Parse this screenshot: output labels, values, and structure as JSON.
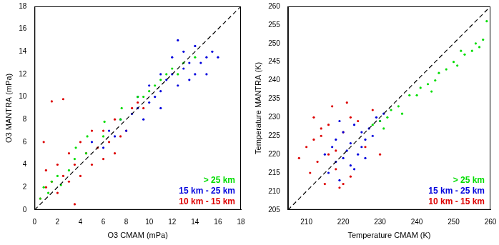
{
  "chart_data": [
    {
      "type": "scatter",
      "x_label": "O3 CMAM (mPa)",
      "y_label": "O3 MANTRA (mPa)",
      "xlim": [
        0,
        18
      ],
      "xticks": [
        0,
        2,
        4,
        6,
        8,
        10,
        12,
        14,
        16,
        18
      ],
      "ylim": [
        0,
        18
      ],
      "yticks": [
        0,
        2,
        4,
        6,
        8,
        10,
        12,
        14,
        16,
        18
      ],
      "grid": false,
      "legend": "lower right",
      "series": [
        {
          "type": "line",
          "line_style": "dashed",
          "color": "#000000",
          "x": [
            0,
            18
          ],
          "values": [
            0,
            18
          ]
        },
        {
          "name": "> 25 km",
          "color": "#00dd00",
          "marker": "point",
          "x": [
            0.5,
            0.8,
            1.2,
            1.5,
            2.0,
            2.3,
            3.0,
            3.5,
            3.6,
            4.5,
            4.6,
            6.0,
            6.1,
            7.5,
            7.6,
            9.0,
            9.5,
            10,
            10.5,
            11,
            11.5,
            12,
            12.5,
            13,
            14
          ],
          "values": [
            1.0,
            2.0,
            1.5,
            2.5,
            3.0,
            2.2,
            3.5,
            4.5,
            5.5,
            5.0,
            6.5,
            6.5,
            7.8,
            8.0,
            9.0,
            10,
            10,
            10.5,
            11,
            11.5,
            12,
            12.5,
            12,
            13,
            13.5
          ]
        },
        {
          "name": "15 km - 25 km",
          "color": "#0000dd",
          "marker": "point",
          "x": [
            5,
            6,
            6.5,
            7,
            7.5,
            8,
            8.5,
            9,
            9.5,
            10,
            10,
            10.5,
            11,
            11,
            11.5,
            12,
            12,
            12.5,
            13,
            13,
            13.5,
            14,
            14,
            14.5,
            15,
            15,
            15.5,
            16,
            9,
            11,
            12.5,
            13.5
          ],
          "values": [
            6,
            5.5,
            7,
            6.5,
            8,
            7,
            8.5,
            9,
            8,
            9.5,
            11,
            10,
            10.5,
            12,
            11.5,
            12,
            13.5,
            11,
            12.5,
            14,
            13,
            12,
            14.5,
            13,
            13.5,
            12,
            14,
            13.5,
            10,
            9,
            15,
            11.5
          ]
        },
        {
          "name": "10 km - 15 km",
          "color": "#dd0000",
          "marker": "point",
          "x": [
            0.5,
            1,
            1,
            1.5,
            2,
            2,
            2.5,
            3,
            3,
            3.5,
            4,
            4,
            4.5,
            5,
            5,
            5.5,
            6,
            6,
            6.5,
            7,
            7,
            7.5,
            8,
            8.5,
            9,
            1.5,
            2.5,
            3.5,
            9.5,
            0.8
          ],
          "values": [
            1,
            2,
            3.5,
            2.5,
            1.5,
            4,
            3,
            2.5,
            5,
            4,
            3,
            6,
            5,
            4,
            7,
            5.5,
            4.5,
            7,
            6,
            5,
            8,
            6.5,
            7,
            9,
            9.5,
            9.6,
            9.8,
            0.5,
            9,
            6
          ]
        }
      ]
    },
    {
      "type": "scatter",
      "x_label": "Temperature CMAM (K)",
      "y_label": "Temperature MANTRA (K)",
      "xlim": [
        205,
        260
      ],
      "xticks": [
        210,
        220,
        230,
        240,
        250,
        260
      ],
      "ylim": [
        205,
        260
      ],
      "yticks": [
        205,
        210,
        215,
        220,
        225,
        230,
        235,
        240,
        245,
        250,
        255,
        260
      ],
      "grid": false,
      "legend": "lower right",
      "series": [
        {
          "type": "line",
          "line_style": "dashed",
          "color": "#000000",
          "x": [
            205,
            260
          ],
          "values": [
            205,
            260
          ]
        },
        {
          "name": "> 25 km",
          "color": "#00dd00",
          "marker": "point",
          "x": [
            228,
            230,
            231,
            233,
            235,
            236,
            238,
            240,
            241,
            243,
            245,
            246,
            248,
            250,
            251,
            253,
            255,
            256,
            258,
            259,
            232,
            244,
            252,
            257
          ],
          "values": [
            228,
            229,
            227,
            232,
            233,
            231,
            236,
            236,
            238,
            239,
            240,
            242,
            243,
            245,
            244,
            247,
            248,
            250,
            251,
            256,
            230,
            237,
            248,
            249
          ]
        },
        {
          "name": "15 km - 25 km",
          "color": "#0000dd",
          "marker": "point",
          "x": [
            215,
            216,
            217,
            218,
            218,
            219,
            220,
            220,
            221,
            222,
            222,
            223,
            224,
            225,
            225,
            226,
            227,
            228,
            229,
            230,
            231,
            219,
            223,
            226
          ],
          "values": [
            220,
            215,
            222,
            218,
            224,
            213,
            219,
            226,
            221,
            217,
            223,
            228,
            220,
            222,
            226,
            224,
            227,
            225,
            230,
            229,
            231,
            229,
            216,
            219
          ]
        },
        {
          "name": "10 km - 15 km",
          "color": "#dd0000",
          "marker": "point",
          "x": [
            208,
            210,
            211,
            212,
            213,
            214,
            215,
            216,
            217,
            218,
            219,
            220,
            221,
            222,
            224,
            226,
            228,
            230,
            214,
            218,
            222,
            212,
            216,
            220
          ],
          "values": [
            219,
            222,
            215,
            230,
            218,
            225,
            212,
            228,
            233,
            221,
            211,
            226,
            234,
            214,
            229,
            222,
            232,
            220,
            227,
            216,
            230,
            224,
            220,
            212
          ]
        }
      ]
    }
  ]
}
